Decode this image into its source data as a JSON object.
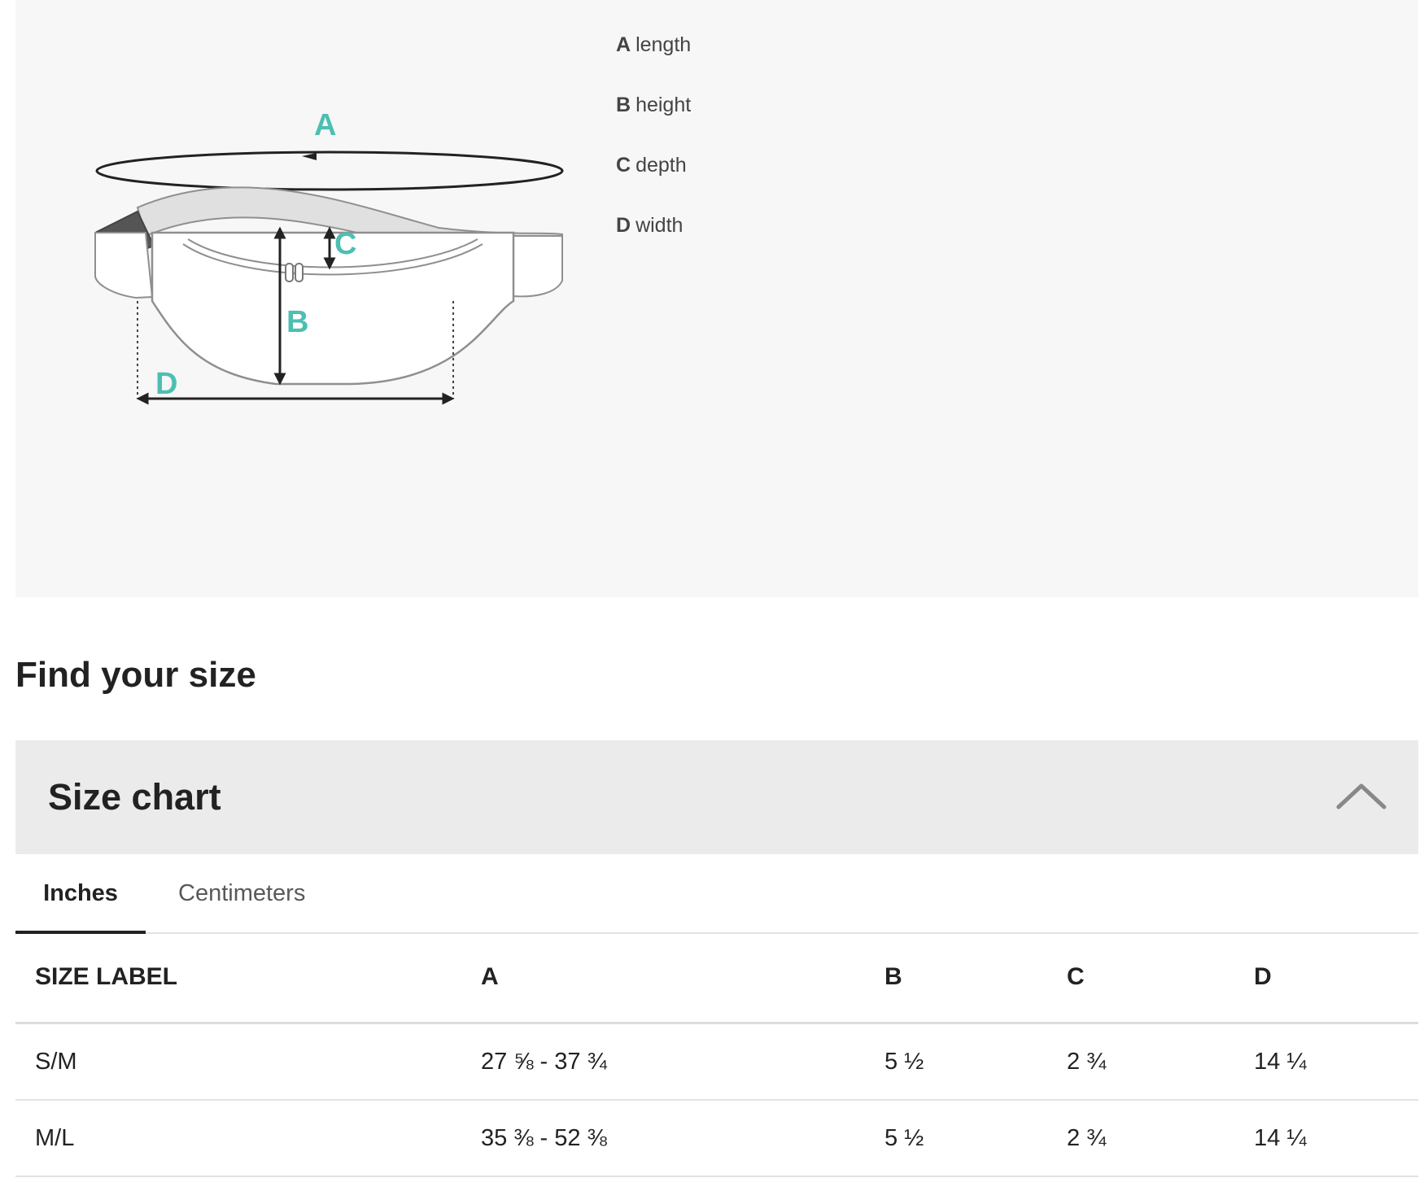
{
  "diagram": {
    "labels": {
      "a": "A",
      "b": "B",
      "c": "C",
      "d": "D"
    },
    "colors": {
      "accent": "#4dbfb2",
      "outline": "#8f8f8f",
      "arrow": "#222222",
      "strap": "#e0e0e0",
      "buckle": "#555555"
    }
  },
  "legend": {
    "items": [
      {
        "key": "A",
        "label": "length"
      },
      {
        "key": "B",
        "label": "height"
      },
      {
        "key": "C",
        "label": "depth"
      },
      {
        "key": "D",
        "label": "width"
      }
    ]
  },
  "find_size": {
    "title": "Find your size"
  },
  "size_chart": {
    "title": "Size chart",
    "toggle_icon": "chevron-up-icon",
    "tabs": [
      {
        "label": "Inches",
        "active": true
      },
      {
        "label": "Centimeters",
        "active": false
      }
    ],
    "columns": [
      "SIZE LABEL",
      "A",
      "B",
      "C",
      "D"
    ],
    "rows": [
      [
        "S/M",
        "27 ⅝ - 37 ¾",
        "5 ½",
        "2 ¾",
        "14 ¼"
      ],
      [
        "M/L",
        "35 ⅜ - 52 ⅜",
        "5 ½",
        "2 ¾",
        "14 ¼"
      ]
    ]
  }
}
